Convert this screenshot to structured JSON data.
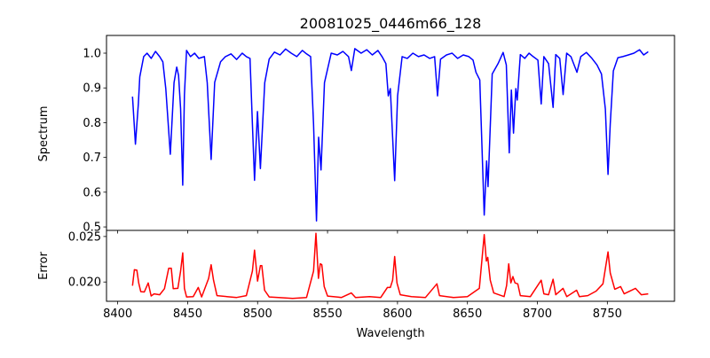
{
  "chart_data": [
    {
      "type": "line",
      "title": "20081025_0446m66_128",
      "xlabel": "",
      "ylabel": "Spectrum",
      "xlim": [
        8392,
        8798
      ],
      "ylim": [
        0.49,
        1.051
      ],
      "xticks": [
        8400,
        8450,
        8500,
        8550,
        8600,
        8650,
        8700,
        8750
      ],
      "yticks": [
        0.5,
        0.6,
        0.7,
        0.8,
        0.9,
        1.0
      ],
      "ytick_labels": [
        "0.5",
        "0.6",
        "0.7",
        "0.8",
        "0.9",
        "1.0"
      ],
      "grid": false,
      "series": [
        {
          "name": "spectrum",
          "color": "#0000ff",
          "x": [
            8410.6,
            8412.7,
            8414.8,
            8415.8,
            8418.6,
            8421,
            8424,
            8427,
            8430,
            8432.3,
            8434.4,
            8437.6,
            8440.3,
            8442.2,
            8443.5,
            8445,
            8446.5,
            8447.7,
            8449.2,
            8452,
            8455,
            8458,
            8462,
            8464,
            8466.8,
            8469.3,
            8473.5,
            8477,
            8481,
            8485,
            8489,
            8492,
            8494.6,
            8496.3,
            8497.8,
            8499.9,
            8502,
            8505.1,
            8508.3,
            8512,
            8516,
            8520,
            8524,
            8528,
            8532,
            8535,
            8537.9,
            8540,
            8542.1,
            8543.6,
            8545.3,
            8547.8,
            8552.6,
            8557,
            8561,
            8565,
            8567,
            8569.5,
            8574,
            8578,
            8582,
            8586,
            8589,
            8591.7,
            8593.4,
            8594.9,
            8598,
            8600.1,
            8603.3,
            8607,
            8611,
            8615,
            8619,
            8623,
            8626.5,
            8628.6,
            8630.8,
            8635,
            8639,
            8643,
            8647,
            8651,
            8654,
            8656.1,
            8658.8,
            8662,
            8663.7,
            8664.7,
            8667.7,
            8671.9,
            8675.5,
            8677.8,
            8679.9,
            8681.4,
            8682.9,
            8684.6,
            8685.6,
            8687.8,
            8691,
            8694,
            8697,
            8700.4,
            8702.7,
            8704.6,
            8708,
            8711.2,
            8713.1,
            8716,
            8718.4,
            8720.9,
            8724,
            8728.3,
            8731,
            8735,
            8739,
            8742.6,
            8745.8,
            8748.6,
            8750.5,
            8752.1,
            8754.3,
            8757.5,
            8761,
            8765,
            8769,
            8773,
            8776,
            8779.2
          ],
          "y": [
            0.875,
            0.738,
            0.855,
            0.932,
            0.99,
            1.0,
            0.985,
            1.005,
            0.99,
            0.975,
            0.898,
            0.709,
            0.915,
            0.96,
            0.936,
            0.84,
            0.62,
            0.88,
            1.008,
            0.99,
            1.0,
            0.985,
            0.99,
            0.915,
            0.694,
            0.916,
            0.975,
            0.99,
            0.998,
            0.982,
            1.0,
            0.99,
            0.985,
            0.796,
            0.634,
            0.832,
            0.668,
            0.915,
            0.983,
            1.003,
            0.995,
            1.012,
            1.0,
            0.99,
            1.008,
            0.998,
            0.99,
            0.796,
            0.517,
            0.758,
            0.664,
            0.915,
            1.0,
            0.995,
            1.005,
            0.99,
            0.95,
            1.013,
            1.0,
            1.01,
            0.995,
            1.008,
            0.99,
            0.97,
            0.877,
            0.898,
            0.633,
            0.877,
            0.99,
            0.985,
            1.0,
            0.99,
            0.995,
            0.985,
            0.99,
            0.877,
            0.983,
            0.995,
            1.0,
            0.985,
            0.995,
            0.99,
            0.98,
            0.945,
            0.923,
            0.534,
            0.69,
            0.616,
            0.94,
            0.97,
            1.002,
            0.966,
            0.713,
            0.894,
            0.77,
            0.898,
            0.865,
            0.996,
            0.985,
            1.0,
            0.99,
            0.98,
            0.854,
            0.99,
            0.97,
            0.844,
            0.996,
            0.985,
            0.881,
            1.0,
            0.99,
            0.945,
            0.99,
            1.002,
            0.985,
            0.966,
            0.94,
            0.839,
            0.651,
            0.796,
            0.949,
            0.987,
            0.99,
            0.995,
            1.0,
            1.01,
            0.995,
            1.004
          ]
        }
      ]
    },
    {
      "type": "line",
      "title": "",
      "xlabel": "Wavelength",
      "ylabel": "Error",
      "xlim": [
        8392,
        8798
      ],
      "ylim": [
        0.01788,
        0.02567
      ],
      "xticks": [
        8400,
        8450,
        8500,
        8550,
        8600,
        8650,
        8700,
        8750
      ],
      "yticks": [
        0.02,
        0.025
      ],
      "ytick_labels": [
        "0.020",
        "0.025"
      ],
      "grid": false,
      "series": [
        {
          "name": "error",
          "color": "#ff0000",
          "x": [
            8410.6,
            8411.9,
            8413.7,
            8415,
            8416.5,
            8419,
            8421.8,
            8423.9,
            8426,
            8430,
            8433.4,
            8436.5,
            8438.3,
            8439.7,
            8443,
            8445,
            8446.5,
            8447.7,
            8449.2,
            8454,
            8457.6,
            8460,
            8465,
            8466.8,
            8468.5,
            8471,
            8478,
            8485,
            8492,
            8496.3,
            8497.8,
            8500,
            8502,
            8503,
            8505,
            8508.3,
            8515,
            8525,
            8535,
            8540,
            8541.7,
            8543.5,
            8544.8,
            8545.9,
            8547.6,
            8550,
            8560,
            8567,
            8570,
            8580,
            8588,
            8592.8,
            8594.9,
            8596.5,
            8598,
            8599.6,
            8602,
            8610,
            8620,
            8628.2,
            8630,
            8640,
            8650,
            8658.5,
            8662,
            8663.5,
            8664.5,
            8666.3,
            8668.8,
            8676.2,
            8678,
            8679.5,
            8681,
            8682.5,
            8684,
            8686,
            8687.8,
            8695,
            8702.7,
            8704.6,
            8708,
            8711.2,
            8713.1,
            8718.3,
            8721,
            8728,
            8730,
            8736,
            8742,
            8746.9,
            8750.5,
            8752.1,
            8755.3,
            8759.5,
            8762,
            8770.1,
            8774.3,
            8779.2
          ],
          "y": [
            0.01959,
            0.02135,
            0.0213,
            0.0199,
            0.01894,
            0.0189,
            0.0199,
            0.01846,
            0.0187,
            0.0186,
            0.01926,
            0.0215,
            0.0215,
            0.01926,
            0.0193,
            0.0212,
            0.0232,
            0.0193,
            0.01836,
            0.0184,
            0.0194,
            0.01836,
            0.0204,
            0.0219,
            0.0202,
            0.0185,
            0.0184,
            0.0183,
            0.0185,
            0.0212,
            0.0235,
            0.0201,
            0.0218,
            0.0218,
            0.0191,
            0.01836,
            0.0183,
            0.0182,
            0.0183,
            0.0212,
            0.02535,
            0.0204,
            0.022,
            0.0219,
            0.0195,
            0.01845,
            0.0183,
            0.0188,
            0.0183,
            0.0184,
            0.0183,
            0.0194,
            0.0194,
            0.0202,
            0.0228,
            0.0199,
            0.0186,
            0.0184,
            0.0183,
            0.0198,
            0.0185,
            0.0183,
            0.0184,
            0.0193,
            0.0252,
            0.0223,
            0.0227,
            0.0202,
            0.0188,
            0.0184,
            0.0196,
            0.022,
            0.0199,
            0.0206,
            0.0199,
            0.0198,
            0.0185,
            0.0184,
            0.0202,
            0.0187,
            0.0186,
            0.0203,
            0.0186,
            0.0193,
            0.0184,
            0.0191,
            0.0184,
            0.0185,
            0.019,
            0.0198,
            0.0233,
            0.021,
            0.0192,
            0.0195,
            0.0187,
            0.0193,
            0.0186,
            0.0187
          ]
        }
      ]
    }
  ]
}
